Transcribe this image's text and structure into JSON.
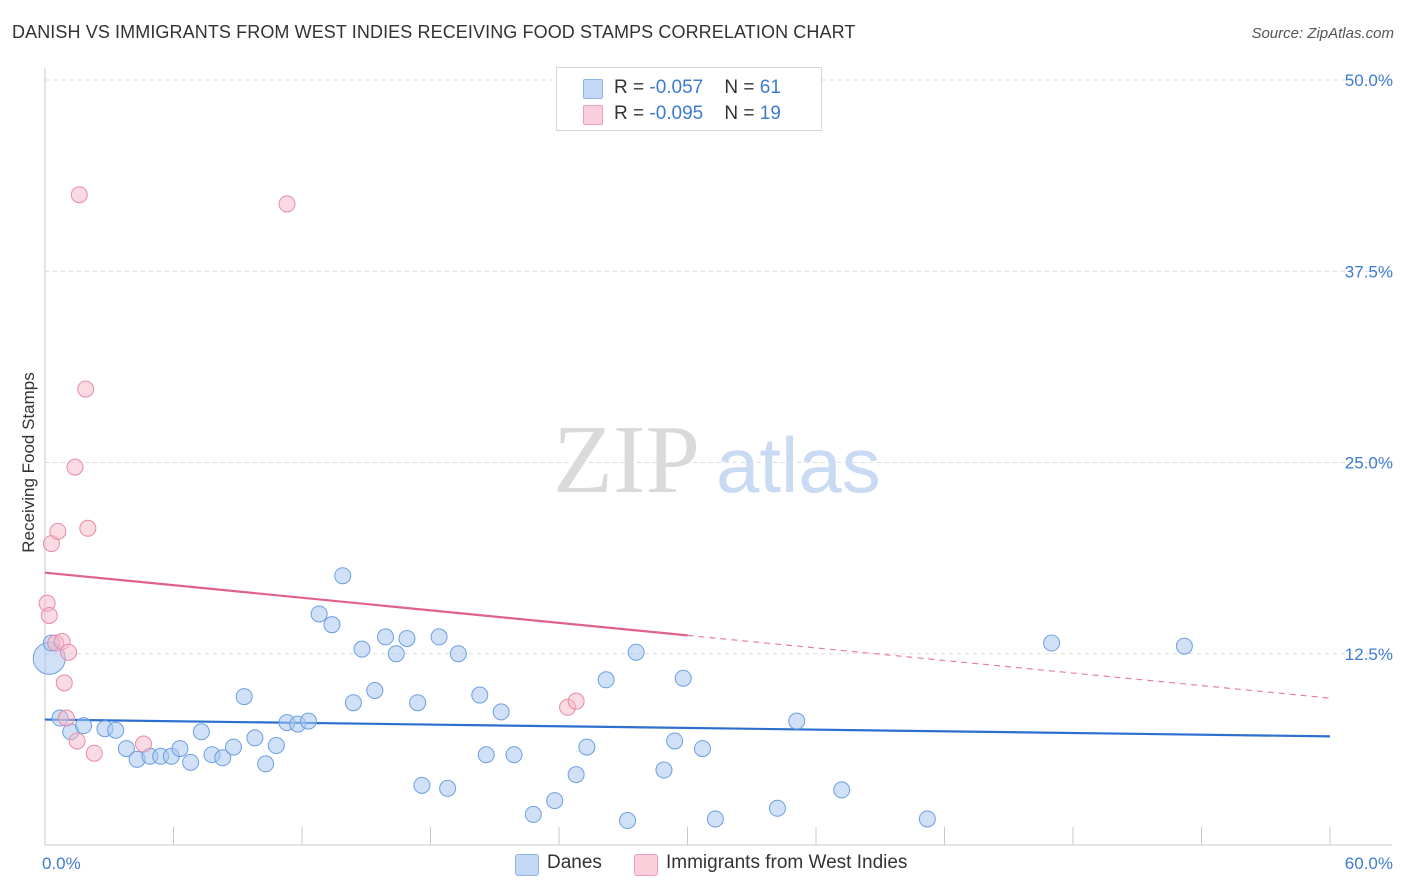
{
  "header": {
    "title": "DANISH VS IMMIGRANTS FROM WEST INDIES RECEIVING FOOD STAMPS CORRELATION CHART",
    "source": "Source: ZipAtlas.com"
  },
  "legend": {
    "rows": [
      {
        "r_label": "R = ",
        "r_value": "-0.057",
        "n_label": "N = ",
        "n_value": "61",
        "color": "#a9c8f0"
      },
      {
        "r_label": "R = ",
        "r_value": "-0.095",
        "n_label": "N = ",
        "n_value": "19",
        "color": "#f5b8c9"
      }
    ]
  },
  "bottom_legend": {
    "danes": "Danes",
    "west_indies": "Immigrants from West Indies"
  },
  "watermark": {
    "zip": "ZIP",
    "atlas": "atlas"
  },
  "colors": {
    "danes_fill": "#a9c8f0",
    "danes_stroke": "#6c9fe0",
    "danes_line": "#2d6fcf",
    "wi_fill": "#f5b8c9",
    "wi_stroke": "#e88aa6",
    "wi_line": "#e0628a",
    "grid": "#dcdcdc",
    "tick_text": "#3d7bd1"
  },
  "chart_data": {
    "type": "scatter",
    "title": "DANISH VS IMMIGRANTS FROM WEST INDIES RECEIVING FOOD STAMPS CORRELATION CHART",
    "xlabel": "",
    "ylabel": "Receiving Food Stamps",
    "xlim": [
      0,
      60
    ],
    "ylim": [
      0,
      50
    ],
    "x_tick_labels": [
      "0.0%",
      "60.0%"
    ],
    "y_ticks": [
      12.5,
      25.0,
      37.5,
      50.0
    ],
    "y_tick_labels": [
      "12.5%",
      "25.0%",
      "37.5%",
      "50.0%"
    ],
    "grid": true,
    "legend_position": "top-center",
    "series": [
      {
        "name": "Danes",
        "R": -0.057,
        "N": 61,
        "trend": {
          "x0": 0,
          "y0": 8.2,
          "x1": 60,
          "y1": 7.1
        },
        "points": [
          [
            0.2,
            12.2
          ],
          [
            0.3,
            13.2
          ],
          [
            0.7,
            8.3
          ],
          [
            1.2,
            7.4
          ],
          [
            1.8,
            7.8
          ],
          [
            2.8,
            7.6
          ],
          [
            3.3,
            7.5
          ],
          [
            3.8,
            6.3
          ],
          [
            4.3,
            5.6
          ],
          [
            4.9,
            5.8
          ],
          [
            5.4,
            5.8
          ],
          [
            5.9,
            5.8
          ],
          [
            6.3,
            6.3
          ],
          [
            6.8,
            5.4
          ],
          [
            7.3,
            7.4
          ],
          [
            7.8,
            5.9
          ],
          [
            8.3,
            5.7
          ],
          [
            8.8,
            6.4
          ],
          [
            9.3,
            9.7
          ],
          [
            9.8,
            7.0
          ],
          [
            10.3,
            5.3
          ],
          [
            10.8,
            6.5
          ],
          [
            11.3,
            8.0
          ],
          [
            11.8,
            7.9
          ],
          [
            12.3,
            8.1
          ],
          [
            12.8,
            15.1
          ],
          [
            13.4,
            14.4
          ],
          [
            13.9,
            17.6
          ],
          [
            14.4,
            9.3
          ],
          [
            14.8,
            12.8
          ],
          [
            15.4,
            10.1
          ],
          [
            15.9,
            13.6
          ],
          [
            16.4,
            12.5
          ],
          [
            16.9,
            13.5
          ],
          [
            17.4,
            9.3
          ],
          [
            17.6,
            3.9
          ],
          [
            18.4,
            13.6
          ],
          [
            18.8,
            3.7
          ],
          [
            19.3,
            12.5
          ],
          [
            20.3,
            9.8
          ],
          [
            20.6,
            5.9
          ],
          [
            21.3,
            8.7
          ],
          [
            21.9,
            5.9
          ],
          [
            22.8,
            2.0
          ],
          [
            23.8,
            2.9
          ],
          [
            24.8,
            4.6
          ],
          [
            25.3,
            6.4
          ],
          [
            26.2,
            10.8
          ],
          [
            27.2,
            1.6
          ],
          [
            27.6,
            12.6
          ],
          [
            28.9,
            4.9
          ],
          [
            29.4,
            6.8
          ],
          [
            29.8,
            10.9
          ],
          [
            30.7,
            6.3
          ],
          [
            31.3,
            1.7
          ],
          [
            34.2,
            2.4
          ],
          [
            35.1,
            8.1
          ],
          [
            37.2,
            3.6
          ],
          [
            41.2,
            1.7
          ],
          [
            47.0,
            13.2
          ],
          [
            53.2,
            13.0
          ]
        ]
      },
      {
        "name": "Immigrants from West Indies",
        "R": -0.095,
        "N": 19,
        "trend": {
          "x0": 0,
          "y0": 17.8,
          "x1": 60,
          "y1": 9.6,
          "solid_to_x": 30
        },
        "points": [
          [
            0.1,
            15.8
          ],
          [
            0.2,
            15.0
          ],
          [
            0.3,
            19.7
          ],
          [
            0.5,
            13.2
          ],
          [
            0.6,
            20.5
          ],
          [
            0.8,
            13.3
          ],
          [
            0.9,
            10.6
          ],
          [
            1.0,
            8.3
          ],
          [
            1.1,
            12.6
          ],
          [
            1.4,
            24.7
          ],
          [
            1.5,
            6.8
          ],
          [
            1.6,
            42.5
          ],
          [
            1.9,
            29.8
          ],
          [
            2.0,
            20.7
          ],
          [
            2.3,
            6.0
          ],
          [
            4.6,
            6.6
          ],
          [
            11.3,
            41.9
          ],
          [
            24.4,
            9.0
          ],
          [
            24.8,
            9.4
          ]
        ]
      }
    ]
  }
}
